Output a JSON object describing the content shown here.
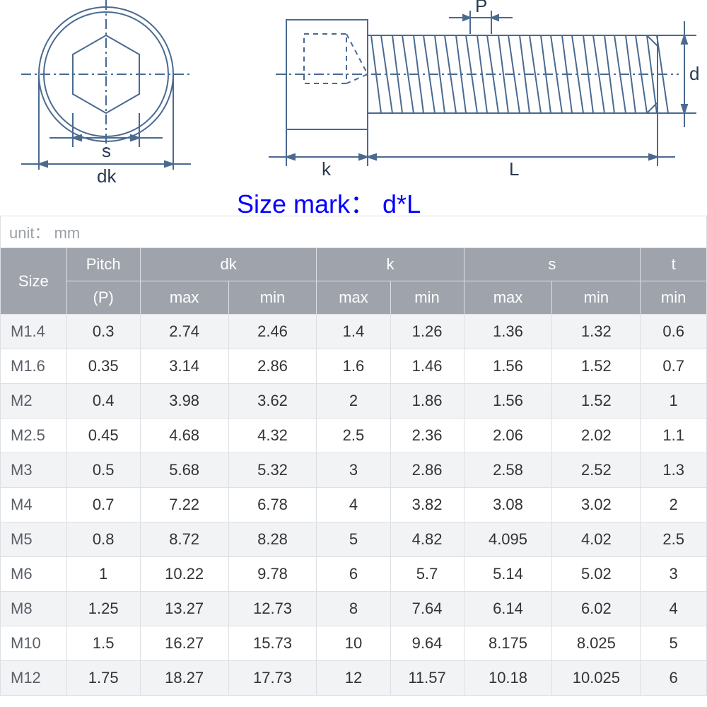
{
  "diagram": {
    "labels": {
      "s": "s",
      "dk": "dk",
      "P": "P",
      "d": "d",
      "k": "k",
      "L": "L"
    },
    "stroke": "#4a6a90",
    "stroke_width": 2,
    "head_fill": "#ffffff"
  },
  "size_mark": "Size mark： d*L",
  "unit_label": "unit： mm",
  "table": {
    "group_headers": [
      {
        "label": "Size",
        "rowspan": 2
      },
      {
        "label": "Pitch",
        "sub": [
          "(P)"
        ]
      },
      {
        "label": "dk",
        "colspan": 2,
        "sub": [
          "max",
          "min"
        ]
      },
      {
        "label": "k",
        "colspan": 2,
        "sub": [
          "max",
          "min"
        ]
      },
      {
        "label": "s",
        "colspan": 2,
        "sub": [
          "max",
          "min"
        ]
      },
      {
        "label": "t",
        "colspan": 1,
        "sub": [
          "min"
        ]
      }
    ],
    "columns": [
      "Size",
      "Pitch(P)",
      "dk_max",
      "dk_min",
      "k_max",
      "k_min",
      "s_max",
      "s_min",
      "t_min"
    ],
    "rows": [
      [
        "M1.4",
        "0.3",
        "2.74",
        "2.46",
        "1.4",
        "1.26",
        "1.36",
        "1.32",
        "0.6"
      ],
      [
        "M1.6",
        "0.35",
        "3.14",
        "2.86",
        "1.6",
        "1.46",
        "1.56",
        "1.52",
        "0.7"
      ],
      [
        "M2",
        "0.4",
        "3.98",
        "3.62",
        "2",
        "1.86",
        "1.56",
        "1.52",
        "1"
      ],
      [
        "M2.5",
        "0.45",
        "4.68",
        "4.32",
        "2.5",
        "2.36",
        "2.06",
        "2.02",
        "1.1"
      ],
      [
        "M3",
        "0.5",
        "5.68",
        "5.32",
        "3",
        "2.86",
        "2.58",
        "2.52",
        "1.3"
      ],
      [
        "M4",
        "0.7",
        "7.22",
        "6.78",
        "4",
        "3.82",
        "3.08",
        "3.02",
        "2"
      ],
      [
        "M5",
        "0.8",
        "8.72",
        "8.28",
        "5",
        "4.82",
        "4.095",
        "4.02",
        "2.5"
      ],
      [
        "M6",
        "1",
        "10.22",
        "9.78",
        "6",
        "5.7",
        "5.14",
        "5.02",
        "3"
      ],
      [
        "M8",
        "1.25",
        "13.27",
        "12.73",
        "8",
        "7.64",
        "6.14",
        "6.02",
        "4"
      ],
      [
        "M10",
        "1.5",
        "16.27",
        "15.73",
        "10",
        "9.64",
        "8.175",
        "8.025",
        "5"
      ],
      [
        "M12",
        "1.75",
        "18.27",
        "17.73",
        "12",
        "11.57",
        "10.18",
        "10.025",
        "6"
      ]
    ],
    "col_widths": [
      "9%",
      "10%",
      "12%",
      "12%",
      "10%",
      "10%",
      "12%",
      "12%",
      "9%"
    ],
    "header_bg": "#9fa4ac",
    "header_fg": "#ffffff",
    "row_odd_bg": "#f2f3f5",
    "row_even_bg": "#ffffff",
    "border_color": "#dcdfe3",
    "font_size": 22
  }
}
